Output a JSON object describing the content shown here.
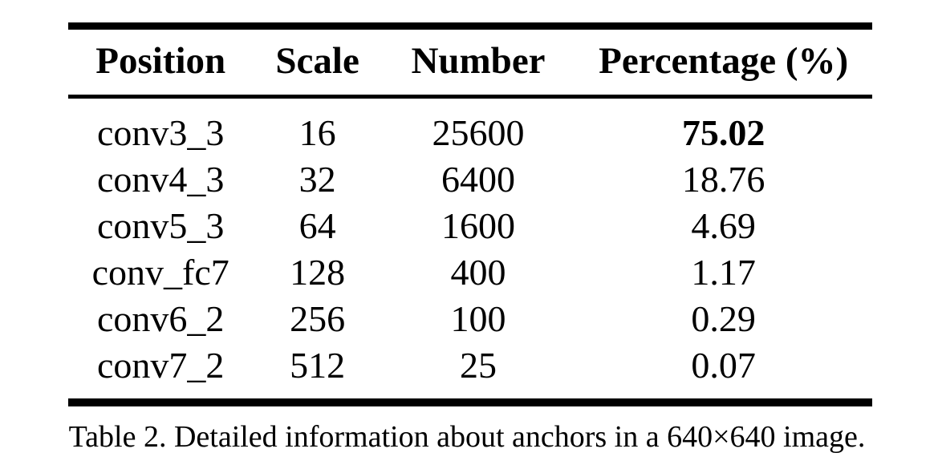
{
  "table": {
    "columns": [
      "Position",
      "Scale",
      "Number",
      "Percentage (%)"
    ],
    "rows": [
      [
        "conv3_3",
        "16",
        "25600",
        "75.02"
      ],
      [
        "conv4_3",
        "32",
        "6400",
        "18.76"
      ],
      [
        "conv5_3",
        "64",
        "1600",
        "4.69"
      ],
      [
        "conv_fc7",
        "128",
        "400",
        "1.17"
      ],
      [
        "conv6_2",
        "256",
        "100",
        "0.29"
      ],
      [
        "conv7_2",
        "512",
        "25",
        "0.07"
      ]
    ],
    "bold_cells": [
      [
        0,
        3
      ]
    ]
  },
  "caption": "Table 2. Detailed information about anchors in a 640×640 image.",
  "colors": {
    "background": "#ffffff",
    "text": "#000000",
    "rule": "#000000"
  }
}
